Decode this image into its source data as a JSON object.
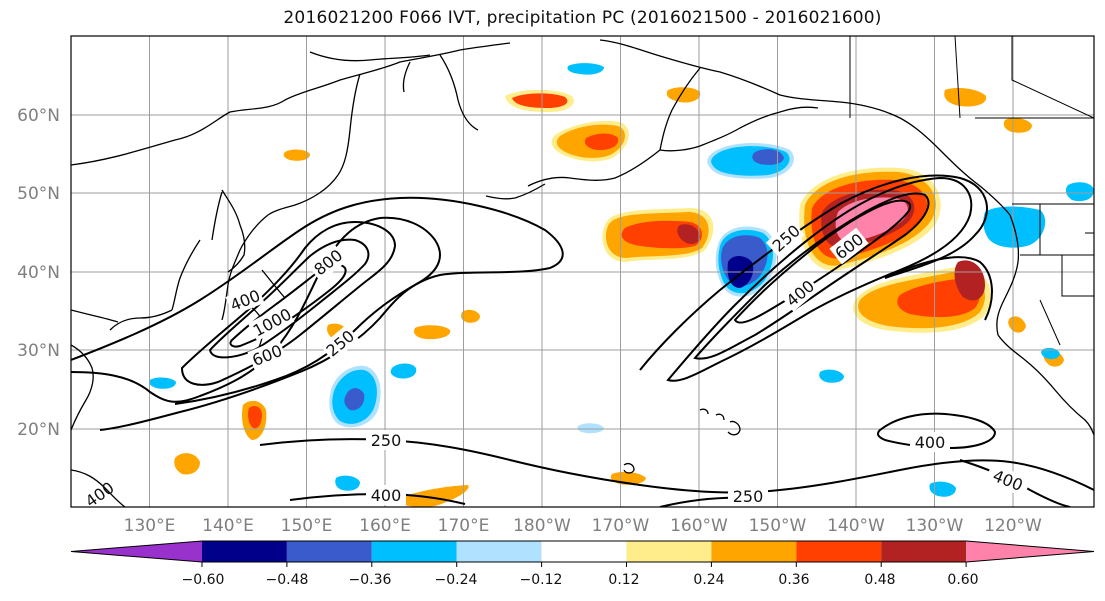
{
  "title": "2016021200 F066 IVT, precipitation PC (2016021500 - 2016021600)",
  "latitude_labels": [
    "60°N",
    "50°N",
    "40°N",
    "30°N",
    "20°N"
  ],
  "longitude_labels": [
    "130°E",
    "140°E",
    "150°E",
    "160°E",
    "170°E",
    "180°W",
    "170°W",
    "160°W",
    "150°W",
    "140°W",
    "130°W",
    "120°W"
  ],
  "colorbar": {
    "ticks": [
      "−0.60",
      "−0.48",
      "−0.36",
      "−0.24",
      "−0.12",
      "0.12",
      "0.24",
      "0.36",
      "0.48",
      "0.60"
    ],
    "colors": [
      "#9932cc",
      "#00008b",
      "#3a5bcc",
      "#00bfff",
      "#b0e2ff",
      "#ffffff",
      "#ffec8b",
      "#ffa500",
      "#ff4000",
      "#b22222",
      "#ff82ab"
    ]
  },
  "contour_labels": [
    "1000",
    "800",
    "600",
    "250",
    "400",
    "250",
    "600",
    "400",
    "250",
    "400",
    "400",
    "250",
    "400",
    "400"
  ],
  "clipped_contour_label": "400"
}
